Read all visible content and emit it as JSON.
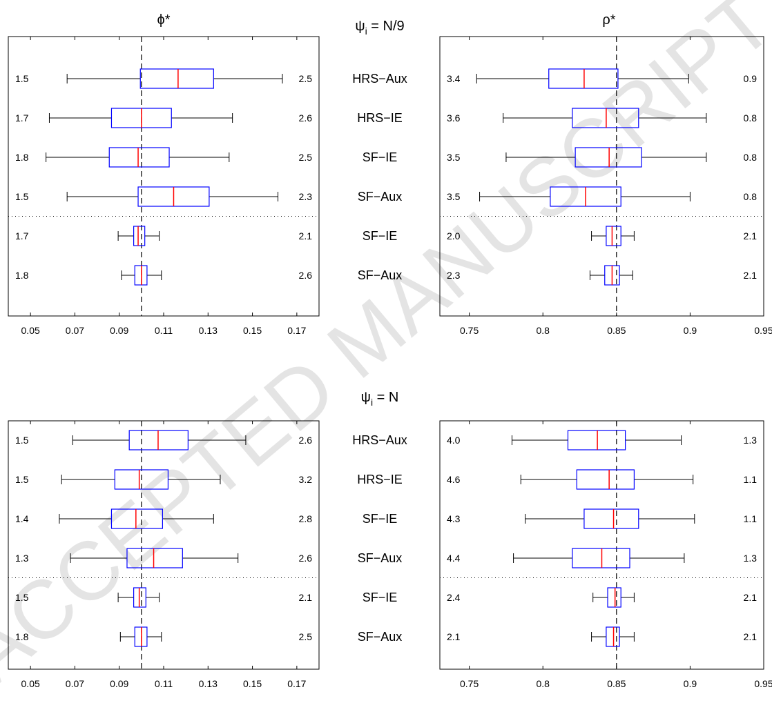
{
  "panel_titles": {
    "top_center": "ψ_i = N/9",
    "bottom_center": "ψ_i = N",
    "left_header": "ϕ*",
    "right_header": "ρ*"
  },
  "watermark": "ACCEPTED MANUSCRIPT",
  "row_labels": [
    "HRS−Aux",
    "HRS−IE",
    "SF−IE",
    "SF−Aux",
    "SF−IE",
    "SF−Aux"
  ],
  "chart_data": [
    {
      "type": "boxplot",
      "panel": "top-left",
      "title": "ϕ*",
      "group": "ψ_i = N/9",
      "xlim": [
        0.04,
        0.18
      ],
      "xticks": [
        "0.05",
        "0.07",
        "0.09",
        "0.11",
        "0.13",
        "0.15",
        "0.17"
      ],
      "reference_line": 0.1,
      "rows": [
        {
          "label": "HRS−Aux",
          "min": 0.0665,
          "q1": 0.0995,
          "median": 0.1165,
          "q3": 0.1325,
          "max": 0.1635,
          "left_value": "1.5",
          "right_value": "2.5"
        },
        {
          "label": "HRS−IE",
          "min": 0.0585,
          "q1": 0.0865,
          "median": 0.1,
          "q3": 0.1135,
          "max": 0.141,
          "left_value": "1.7",
          "right_value": "2.6"
        },
        {
          "label": "SF−IE",
          "min": 0.057,
          "q1": 0.0855,
          "median": 0.0985,
          "q3": 0.1125,
          "max": 0.1395,
          "left_value": "1.8",
          "right_value": "2.5"
        },
        {
          "label": "SF−Aux",
          "min": 0.0665,
          "q1": 0.0985,
          "median": 0.1145,
          "q3": 0.1305,
          "max": 0.1615,
          "left_value": "1.5",
          "right_value": "2.3"
        },
        {
          "label": "SF−IE",
          "min": 0.0895,
          "q1": 0.0965,
          "median": 0.0985,
          "q3": 0.1015,
          "max": 0.108,
          "left_value": "1.7",
          "right_value": "2.1"
        },
        {
          "label": "SF−Aux",
          "min": 0.091,
          "q1": 0.097,
          "median": 0.1,
          "q3": 0.1025,
          "max": 0.109,
          "left_value": "1.8",
          "right_value": "2.6"
        }
      ]
    },
    {
      "type": "boxplot",
      "panel": "top-right",
      "title": "ρ*",
      "group": "ψ_i = N/9",
      "xlim": [
        0.73,
        0.95
      ],
      "xticks": [
        "0.75",
        "0.8",
        "0.85",
        "0.9",
        "0.95"
      ],
      "reference_line": 0.85,
      "rows": [
        {
          "label": "HRS−Aux",
          "min": 0.755,
          "q1": 0.804,
          "median": 0.828,
          "q3": 0.851,
          "max": 0.899,
          "left_value": "3.4",
          "right_value": "0.9"
        },
        {
          "label": "HRS−IE",
          "min": 0.773,
          "q1": 0.82,
          "median": 0.843,
          "q3": 0.865,
          "max": 0.911,
          "left_value": "3.6",
          "right_value": "0.8"
        },
        {
          "label": "SF−IE",
          "min": 0.775,
          "q1": 0.822,
          "median": 0.845,
          "q3": 0.867,
          "max": 0.911,
          "left_value": "3.5",
          "right_value": "0.8"
        },
        {
          "label": "SF−Aux",
          "min": 0.757,
          "q1": 0.805,
          "median": 0.829,
          "q3": 0.853,
          "max": 0.9,
          "left_value": "3.5",
          "right_value": "0.8"
        },
        {
          "label": "SF−IE",
          "min": 0.833,
          "q1": 0.843,
          "median": 0.847,
          "q3": 0.853,
          "max": 0.862,
          "left_value": "2.0",
          "right_value": "2.1"
        },
        {
          "label": "SF−Aux",
          "min": 0.832,
          "q1": 0.842,
          "median": 0.847,
          "q3": 0.852,
          "max": 0.861,
          "left_value": "2.3",
          "right_value": "2.1"
        }
      ]
    },
    {
      "type": "boxplot",
      "panel": "bottom-left",
      "title": "ϕ*",
      "group": "ψ_i = N",
      "xlim": [
        0.04,
        0.18
      ],
      "xticks": [
        "0.05",
        "0.07",
        "0.09",
        "0.11",
        "0.13",
        "0.15",
        "0.17"
      ],
      "reference_line": 0.1,
      "rows": [
        {
          "label": "HRS−Aux",
          "min": 0.069,
          "q1": 0.0945,
          "median": 0.1075,
          "q3": 0.121,
          "max": 0.147,
          "left_value": "1.5",
          "right_value": "2.6"
        },
        {
          "label": "HRS−IE",
          "min": 0.064,
          "q1": 0.088,
          "median": 0.099,
          "q3": 0.112,
          "max": 0.1355,
          "left_value": "1.5",
          "right_value": "3.2"
        },
        {
          "label": "SF−IE",
          "min": 0.063,
          "q1": 0.0865,
          "median": 0.0975,
          "q3": 0.1095,
          "max": 0.1325,
          "left_value": "1.4",
          "right_value": "2.8"
        },
        {
          "label": "SF−Aux",
          "min": 0.068,
          "q1": 0.0935,
          "median": 0.1055,
          "q3": 0.1185,
          "max": 0.1435,
          "left_value": "1.3",
          "right_value": "2.6"
        },
        {
          "label": "SF−IE",
          "min": 0.0895,
          "q1": 0.0965,
          "median": 0.099,
          "q3": 0.102,
          "max": 0.108,
          "left_value": "1.5",
          "right_value": "2.1"
        },
        {
          "label": "SF−Aux",
          "min": 0.0905,
          "q1": 0.097,
          "median": 0.1,
          "q3": 0.1025,
          "max": 0.109,
          "left_value": "1.8",
          "right_value": "2.5"
        }
      ]
    },
    {
      "type": "boxplot",
      "panel": "bottom-right",
      "title": "ρ*",
      "group": "ψ_i = N",
      "xlim": [
        0.73,
        0.95
      ],
      "xticks": [
        "0.75",
        "0.8",
        "0.85",
        "0.9",
        "0.95"
      ],
      "reference_line": 0.85,
      "rows": [
        {
          "label": "HRS−Aux",
          "min": 0.779,
          "q1": 0.817,
          "median": 0.837,
          "q3": 0.856,
          "max": 0.894,
          "left_value": "4.0",
          "right_value": "1.3"
        },
        {
          "label": "HRS−IE",
          "min": 0.785,
          "q1": 0.823,
          "median": 0.845,
          "q3": 0.862,
          "max": 0.902,
          "left_value": "4.6",
          "right_value": "1.1"
        },
        {
          "label": "SF−IE",
          "min": 0.788,
          "q1": 0.828,
          "median": 0.848,
          "q3": 0.865,
          "max": 0.903,
          "left_value": "4.3",
          "right_value": "1.1"
        },
        {
          "label": "SF−Aux",
          "min": 0.78,
          "q1": 0.82,
          "median": 0.84,
          "q3": 0.859,
          "max": 0.896,
          "left_value": "4.4",
          "right_value": "1.3"
        },
        {
          "label": "SF−IE",
          "min": 0.834,
          "q1": 0.844,
          "median": 0.849,
          "q3": 0.853,
          "max": 0.862,
          "left_value": "2.4",
          "right_value": "2.1"
        },
        {
          "label": "SF−Aux",
          "min": 0.833,
          "q1": 0.843,
          "median": 0.848,
          "q3": 0.852,
          "max": 0.862,
          "left_value": "2.1",
          "right_value": "2.1"
        }
      ]
    }
  ],
  "colors": {
    "box": "#0000ff",
    "median": "#ff0000",
    "whisker": "#000000",
    "frame": "#000000",
    "watermark": "#e4e4e4"
  }
}
